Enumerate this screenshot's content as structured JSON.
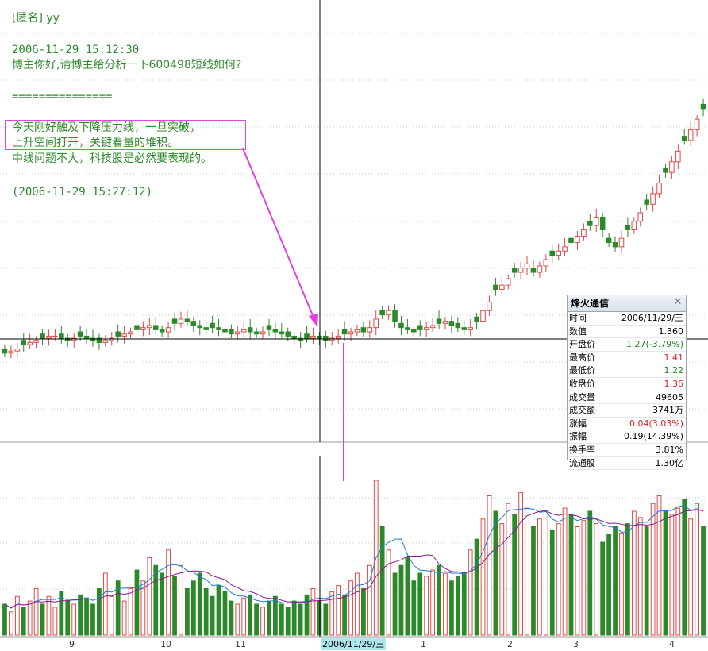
{
  "comment": {
    "header": "[匿名] yy",
    "question_time": "2006-11-29 15:12:30",
    "question": "博主你好,请博主给分析一下600498短线如何?",
    "separator": "===============",
    "answer_line1": "今天刚好触及下降压力线，一旦突破，",
    "answer_line2": "上升空间打开，关键看量的堆积。",
    "answer_line3": "中线问题不大，科技股是必然要表现的。",
    "answer_time": "(2006-11-29 15:27:12)"
  },
  "cursor_date": "2006/11/29/三",
  "x_ticks": [
    "9",
    "10",
    "11",
    "1",
    "2",
    "3",
    "4"
  ],
  "info_panel": {
    "title": "烽火通信",
    "rows": [
      {
        "label": "时间",
        "value": "2006/11/29/三",
        "color": "#000000"
      },
      {
        "label": "数值",
        "value": "1.360",
        "color": "#000000"
      },
      {
        "label": "开盘价",
        "value": "1.27(-3.79%)",
        "color": "#1a8a1a"
      },
      {
        "label": "最高价",
        "value": "1.41",
        "color": "#e02020"
      },
      {
        "label": "最低价",
        "value": "1.22",
        "color": "#1a8a1a"
      },
      {
        "label": "收盘价",
        "value": "1.36",
        "color": "#e02020"
      },
      {
        "label": "成交量",
        "value": "49605",
        "color": "#000000"
      },
      {
        "label": "成交额",
        "value": "3741万",
        "color": "#000000"
      },
      {
        "label": "涨幅",
        "value": "0.04(3.03%)",
        "color": "#e02020"
      },
      {
        "label": "振幅",
        "value": "0.19(14.39%)",
        "color": "#000000"
      },
      {
        "label": "换手率",
        "value": "3.81%",
        "color": "#000000"
      },
      {
        "label": "流通股",
        "value": "1.30亿",
        "color": "#000000"
      }
    ]
  },
  "colors": {
    "up": "#e04848",
    "down": "#2a8a2a",
    "ma_volume_1": "#1a7fd0",
    "ma_volume_2": "#8b1a8b",
    "annotation": "#e040e0"
  },
  "chart_data": {
    "type": "candlestick",
    "price_series_close": [
      1.2,
      1.21,
      1.22,
      1.24,
      1.25,
      1.26,
      1.27,
      1.28,
      1.28,
      1.27,
      1.26,
      1.27,
      1.28,
      1.27,
      1.26,
      1.25,
      1.26,
      1.27,
      1.28,
      1.29,
      1.3,
      1.31,
      1.32,
      1.33,
      1.31,
      1.3,
      1.32,
      1.34,
      1.36,
      1.35,
      1.33,
      1.32,
      1.31,
      1.32,
      1.31,
      1.3,
      1.29,
      1.3,
      1.31,
      1.3,
      1.29,
      1.3,
      1.31,
      1.3,
      1.29,
      1.28,
      1.27,
      1.26,
      1.27,
      1.28,
      1.27,
      1.26,
      1.27,
      1.28,
      1.29,
      1.3,
      1.31,
      1.3,
      1.32,
      1.36,
      1.38,
      1.4,
      1.35,
      1.32,
      1.31,
      1.3,
      1.31,
      1.32,
      1.33,
      1.34,
      1.35,
      1.33,
      1.32,
      1.31,
      1.32,
      1.35,
      1.4,
      1.44,
      1.5,
      1.52,
      1.55,
      1.58,
      1.6,
      1.62,
      1.58,
      1.61,
      1.64,
      1.66,
      1.68,
      1.7,
      1.72,
      1.75,
      1.78,
      1.8,
      1.84,
      1.78,
      1.72,
      1.7,
      1.74,
      1.78,
      1.82,
      1.86,
      1.9,
      1.95,
      2.0,
      2.05,
      2.1,
      2.15,
      2.2,
      2.25,
      2.3,
      2.35
    ],
    "volume_series_ratio": [
      0.2,
      0.15,
      0.25,
      0.18,
      0.22,
      0.3,
      0.2,
      0.25,
      0.18,
      0.28,
      0.22,
      0.2,
      0.26,
      0.24,
      0.2,
      0.3,
      0.4,
      0.25,
      0.35,
      0.22,
      0.3,
      0.42,
      0.35,
      0.5,
      0.45,
      0.4,
      0.55,
      0.38,
      0.45,
      0.3,
      0.35,
      0.4,
      0.3,
      0.25,
      0.32,
      0.28,
      0.22,
      0.2,
      0.24,
      0.26,
      0.2,
      0.18,
      0.22,
      0.25,
      0.2,
      0.18,
      0.22,
      0.2,
      0.26,
      0.3,
      0.22,
      0.2,
      0.28,
      0.32,
      0.26,
      0.35,
      0.4,
      0.3,
      0.45,
      1.0,
      0.7,
      0.55,
      0.4,
      0.45,
      0.5,
      0.35,
      0.4,
      0.38,
      0.42,
      0.45,
      0.4,
      0.35,
      0.38,
      0.4,
      0.55,
      0.62,
      0.75,
      0.9,
      0.8,
      0.72,
      0.85,
      0.78,
      0.92,
      0.82,
      0.7,
      0.75,
      0.8,
      0.68,
      0.72,
      0.82,
      0.78,
      0.7,
      0.74,
      0.8,
      0.72,
      0.6,
      0.65,
      0.7,
      0.66,
      0.72,
      0.8,
      0.76,
      0.7,
      0.85,
      0.9,
      0.8,
      0.78,
      0.82,
      0.88,
      0.75,
      0.85,
      0.7
    ],
    "x_labels": [
      "9",
      "10",
      "11",
      "1",
      "2",
      "3",
      "4"
    ],
    "highlight_date": "2006/11/29/三"
  }
}
